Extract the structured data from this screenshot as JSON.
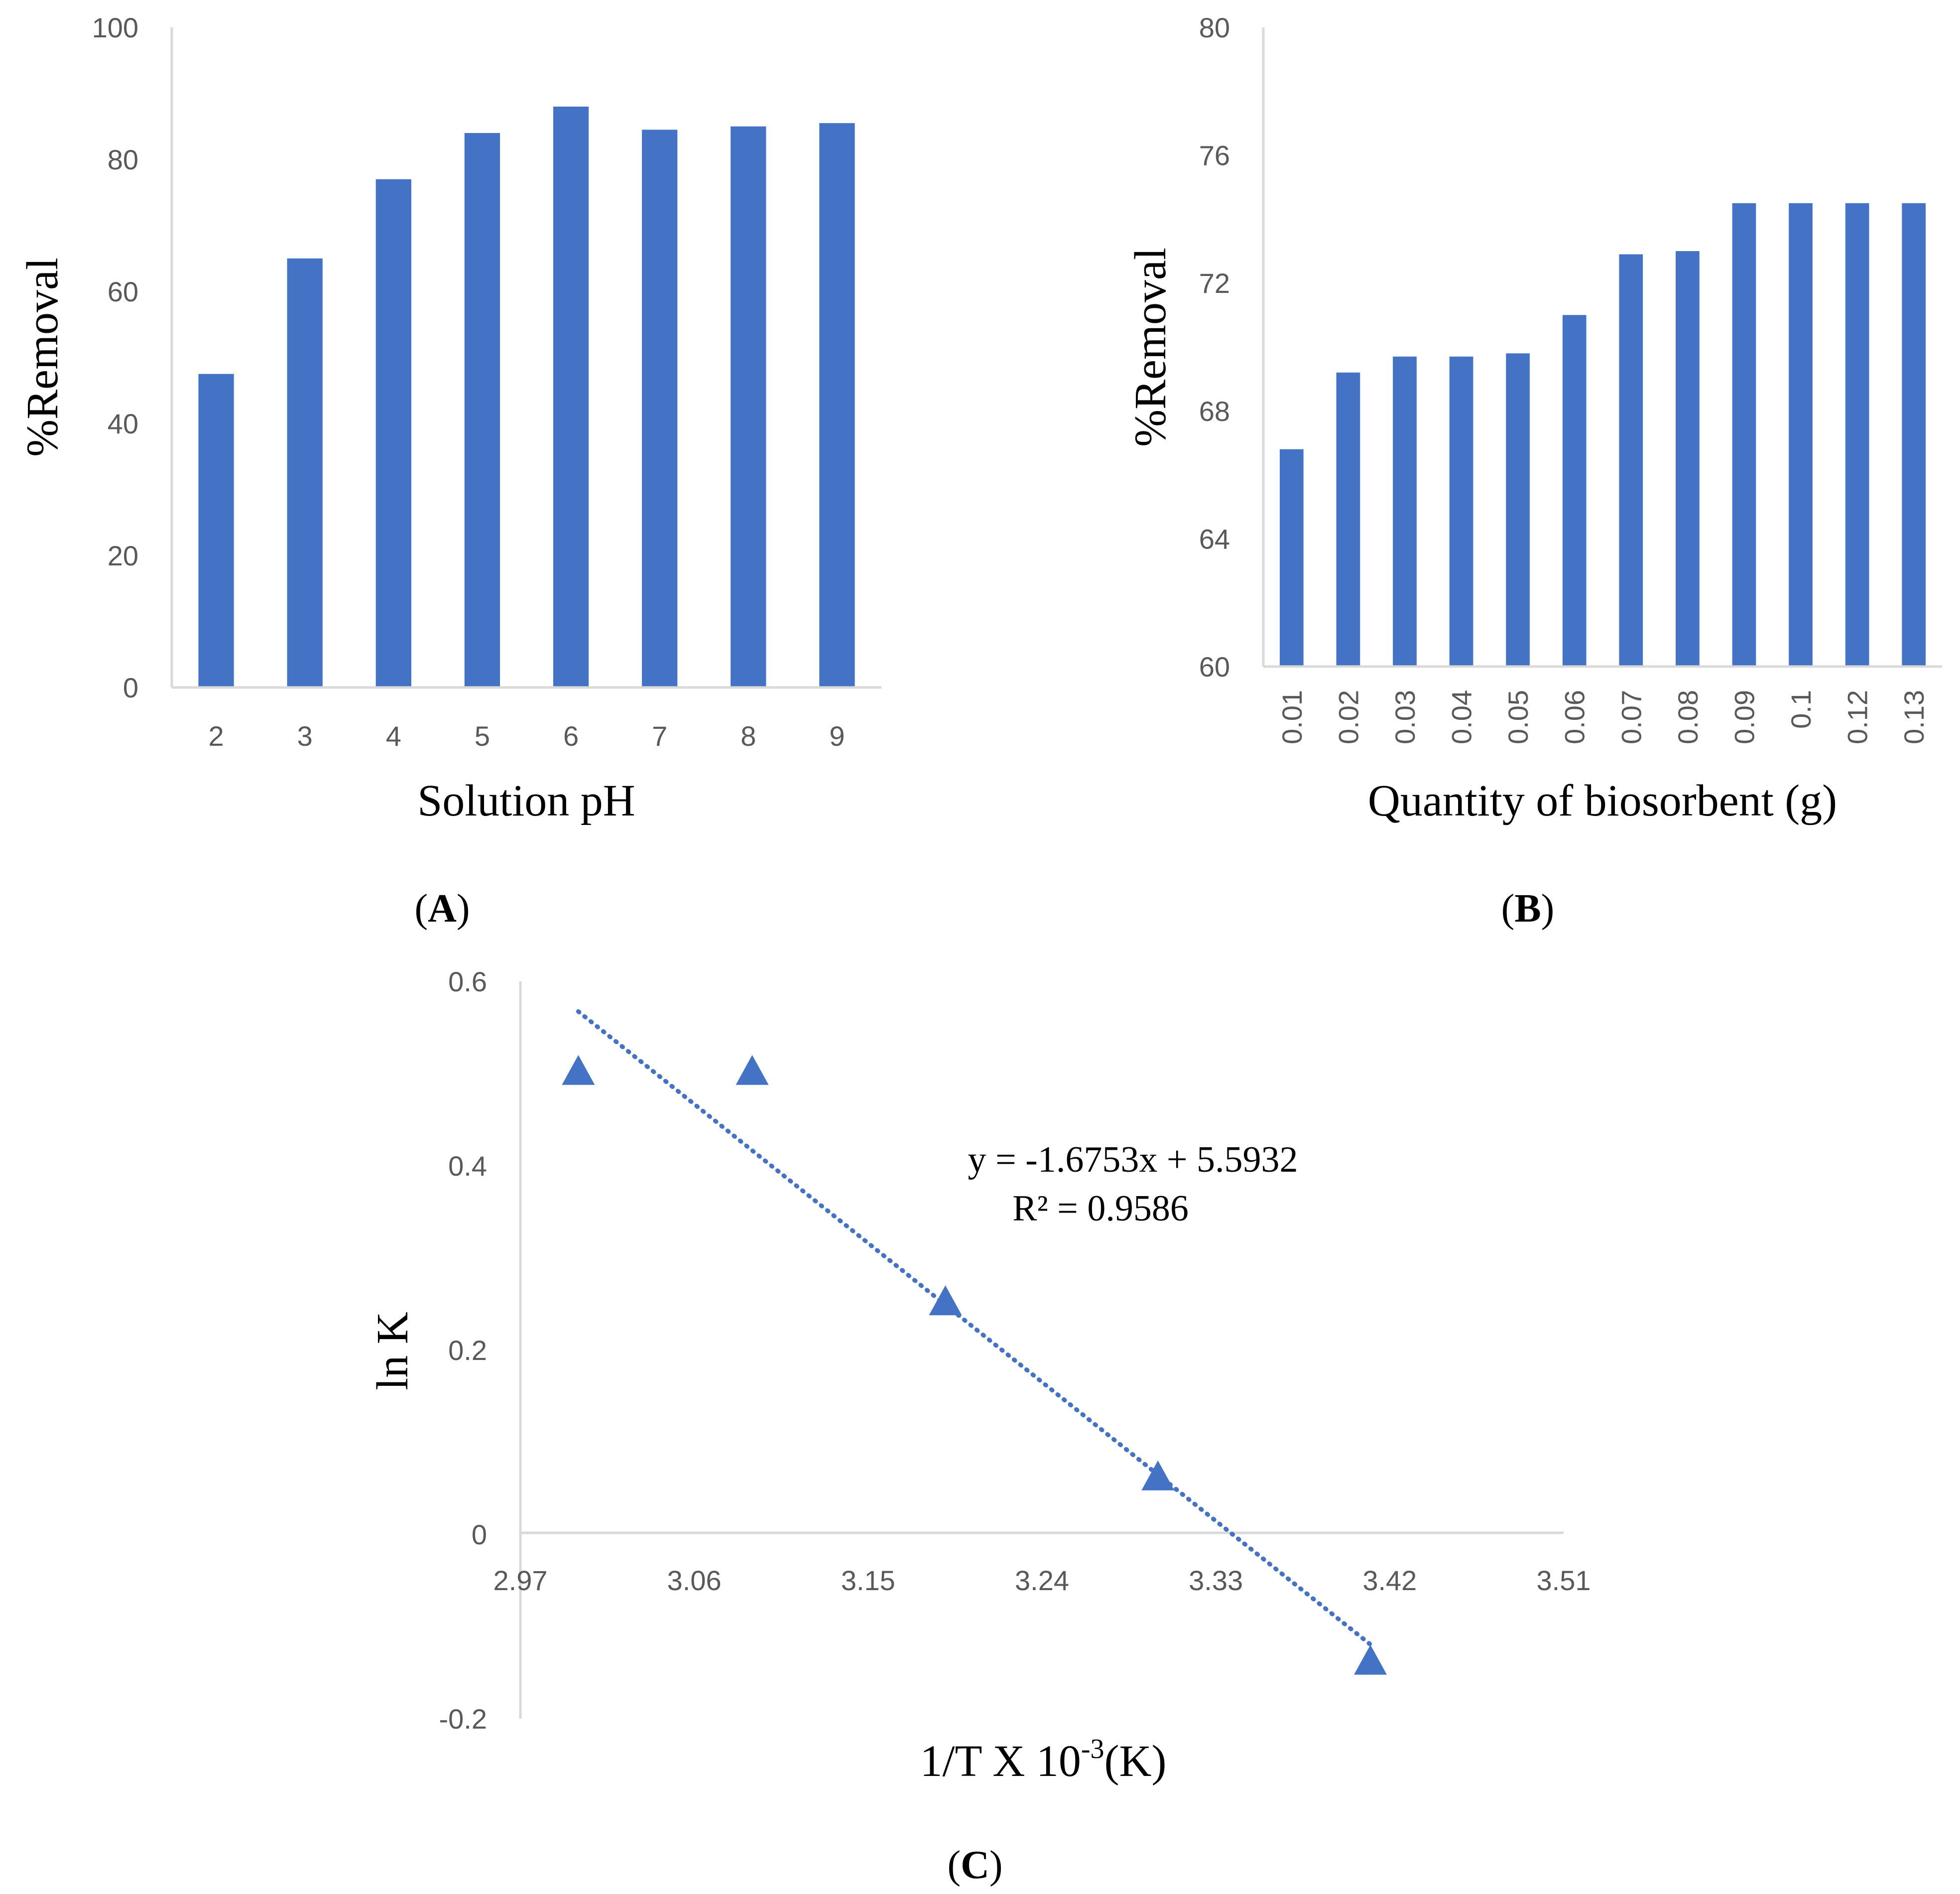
{
  "chart_data": [
    {
      "id": "A",
      "type": "bar",
      "panel_label": "A",
      "categories": [
        "2",
        "3",
        "4",
        "5",
        "6",
        "7",
        "8",
        "9"
      ],
      "values": [
        47.5,
        65,
        77,
        84,
        88,
        84.5,
        85,
        85.5
      ],
      "xlabel": "Solution pH",
      "ylabel": "%Removal",
      "ylim": [
        0,
        100
      ],
      "yticks": [
        "0",
        "20",
        "40",
        "60",
        "80",
        "100"
      ],
      "bar_color": "#4472C4"
    },
    {
      "id": "B",
      "type": "bar",
      "panel_label": "B",
      "categories": [
        "0.01",
        "0.02",
        "0.03",
        "0.04",
        "0.05",
        "0.06",
        "0.07",
        "0.08",
        "0.09",
        "0.1",
        "0.12",
        "0.13"
      ],
      "values": [
        66.8,
        69.2,
        69.7,
        69.7,
        69.8,
        71,
        72.9,
        73,
        74.5,
        74.5,
        74.5,
        74.5
      ],
      "xlabel": "Quantity of biosorbent (g)",
      "ylabel": "%Removal",
      "ylim": [
        60,
        80
      ],
      "yticks": [
        "60",
        "64",
        "68",
        "72",
        "76",
        "80"
      ],
      "bar_color": "#4472C4"
    },
    {
      "id": "C",
      "type": "scatter",
      "panel_label": "C",
      "x": [
        3.0,
        3.09,
        3.19,
        3.3,
        3.41
      ],
      "y": [
        0.5,
        0.5,
        0.25,
        0.06,
        -0.14
      ],
      "xlabel_main": "1/T X 10",
      "xlabel_sup": "-3",
      "xlabel_tail": "(K)",
      "ylabel": "ln K",
      "xlim": [
        2.97,
        3.51
      ],
      "ylim": [
        -0.2,
        0.6
      ],
      "xticks": [
        "2.97",
        "3.06",
        "3.15",
        "3.24",
        "3.33",
        "3.42",
        "3.51"
      ],
      "yticks": [
        "-0.2",
        "0",
        "0.2",
        "0.4",
        "0.6"
      ],
      "trendline": {
        "slope": -1.6753,
        "intercept": 5.5932,
        "x_start": 3.0,
        "x_end": 3.41
      },
      "equation": "y = -1.6753x + 5.5932",
      "r_squared": "R² = 0.9586",
      "marker_color": "#4472C4"
    }
  ]
}
